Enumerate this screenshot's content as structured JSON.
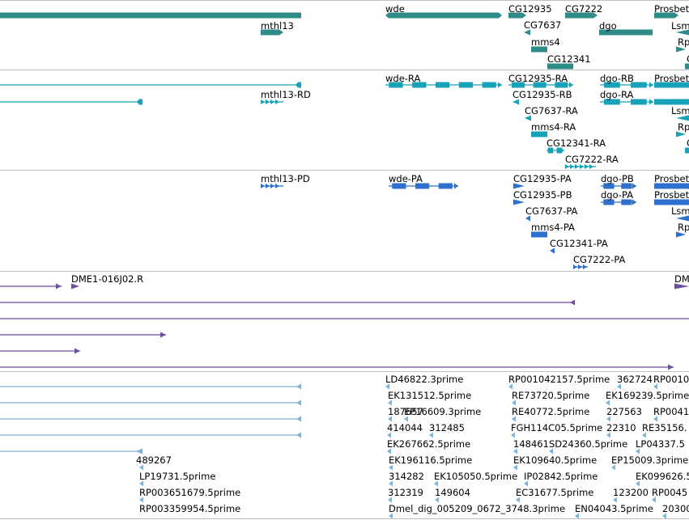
{
  "tracks": [
    {
      "name": "gene",
      "color": "#2e8b87",
      "features": [
        {
          "label": "",
          "shape": "thick"
        },
        {
          "label": "wde",
          "shape": "thick-both"
        },
        {
          "label": "CG12935",
          "shape": "thick-right"
        },
        {
          "label": "CG7222",
          "shape": "thick-right"
        },
        {
          "label": "Prosbet",
          "shape": "thick-right"
        },
        {
          "label": "mthl13",
          "shape": "thick-right"
        },
        {
          "label": "CG7637",
          "shape": "left-arrow"
        },
        {
          "label": "dgo",
          "shape": "thick"
        },
        {
          "label": "Lsm",
          "shape": "left-arrow"
        },
        {
          "label": "mms4",
          "shape": "thick"
        },
        {
          "label": "Rp",
          "shape": "right-arrow"
        },
        {
          "label": "CG12341",
          "shape": "thick"
        },
        {
          "label": "C",
          "shape": "thick"
        }
      ]
    },
    {
      "name": "transcript",
      "color": "#17a2b8",
      "features": [
        {
          "label": "",
          "shape": "line-tail"
        },
        {
          "label": "wde-RA",
          "shape": "exons"
        },
        {
          "label": "CG12935-RA",
          "shape": "exons"
        },
        {
          "label": "dgo-RB",
          "shape": "exons"
        },
        {
          "label": "Prosbet",
          "shape": "thick"
        },
        {
          "label": "",
          "shape": "line-tail"
        },
        {
          "label": "mthl13-RD",
          "shape": "chevrons"
        },
        {
          "label": "CG12935-RB",
          "shape": "left-arrow"
        },
        {
          "label": "dgo-RA",
          "shape": "exons"
        },
        {
          "label": "",
          "shape": "thick"
        },
        {
          "label": "CG7637-RA",
          "shape": "left-arrow"
        },
        {
          "label": "Lsm",
          "shape": "left-arrow"
        },
        {
          "label": "mms4-RA",
          "shape": "thick"
        },
        {
          "label": "Rp",
          "shape": "right-arrow"
        },
        {
          "label": "CG12341-RA",
          "shape": "exons"
        },
        {
          "label": "C",
          "shape": "thick"
        },
        {
          "label": "CG7222-RA",
          "shape": "chevrons"
        }
      ]
    },
    {
      "name": "protein",
      "color": "#2f6fce",
      "features": [
        {
          "label": "mthl13-PD",
          "shape": "chevrons"
        },
        {
          "label": "wde-PA",
          "shape": "exons"
        },
        {
          "label": "CG12935-PA",
          "shape": "right-arrow"
        },
        {
          "label": "dgo-PB",
          "shape": "exons"
        },
        {
          "label": "Prosbet",
          "shape": "thick"
        },
        {
          "label": "CG12935-PB",
          "shape": "right-arrow"
        },
        {
          "label": "dgo-PA",
          "shape": "exons"
        },
        {
          "label": "Prosbet",
          "shape": "thick"
        },
        {
          "label": "CG7637-PA",
          "shape": "left-arrow"
        },
        {
          "label": "Lsm",
          "shape": "left-arrow"
        },
        {
          "label": "mms4-PA",
          "shape": "thick"
        },
        {
          "label": "Rp",
          "shape": "right-arrow"
        },
        {
          "label": "CG12341-PA",
          "shape": "left-arrow"
        },
        {
          "label": "CG7222-PA",
          "shape": "chevrons"
        }
      ]
    },
    {
      "name": "clone",
      "color": "#6f4ea3",
      "features": [
        {
          "label": "",
          "shape": "line-right"
        },
        {
          "label": "DME1-016J02.R",
          "shape": "right-arrow"
        },
        {
          "label": "DM",
          "shape": "right-arrow"
        },
        {
          "label": "",
          "shape": "line-left"
        },
        {
          "label": "",
          "shape": "line"
        },
        {
          "label": "",
          "shape": "line-right"
        },
        {
          "label": "",
          "shape": "line-right"
        },
        {
          "label": "",
          "shape": "line-right"
        }
      ]
    },
    {
      "name": "est",
      "color": "#7bb4dc",
      "features": [
        {
          "label": "",
          "shape": "line-left"
        },
        {
          "label": "",
          "shape": "line-left"
        },
        {
          "label": "",
          "shape": "line-left"
        },
        {
          "label": "",
          "shape": "line-left"
        },
        {
          "label": "",
          "shape": "line-left"
        },
        {
          "label": "489267",
          "shape": "left-arrow"
        },
        {
          "label": "LP19731.5prime",
          "shape": "left-arrow"
        },
        {
          "label": "RP003651679.5prime",
          "shape": "left-arrow"
        },
        {
          "label": "RP003359954.5prime",
          "shape": "left-arrow"
        },
        {
          "label": "LD46822.3prime",
          "shape": "left-arrow"
        },
        {
          "label": "EK131512.5prime",
          "shape": "left-arrow"
        },
        {
          "label": "187657",
          "shape": "left-arrow"
        },
        {
          "label": "EP16609.3prime",
          "shape": "left-arrow"
        },
        {
          "label": "414044",
          "shape": "left-arrow"
        },
        {
          "label": "312485",
          "shape": "left-arrow"
        },
        {
          "label": "EK267662.5prime",
          "shape": "left-arrow"
        },
        {
          "label": "EK196116.5prime",
          "shape": "left-arrow"
        },
        {
          "label": "314282",
          "shape": "left-arrow"
        },
        {
          "label": "EK105050.5prime",
          "shape": "left-arrow"
        },
        {
          "label": "312319",
          "shape": "left-arrow"
        },
        {
          "label": "149604",
          "shape": "left-arrow"
        },
        {
          "label": "Dmel_dig_005209_0672_3748.3prime",
          "shape": "left-arrow"
        },
        {
          "label": "RP001042157.5prime",
          "shape": "left-arrow"
        },
        {
          "label": "RE73720.5prime",
          "shape": "left-arrow"
        },
        {
          "label": "RE40772.5prime",
          "shape": "left-arrow"
        },
        {
          "label": "FGH114C05.5prime",
          "shape": "left-arrow"
        },
        {
          "label": "148461",
          "shape": "left-arrow"
        },
        {
          "label": "SD24360.5prime",
          "shape": "left-arrow"
        },
        {
          "label": "EK109640.5prime",
          "shape": "left-arrow"
        },
        {
          "label": "IP02842.5prime",
          "shape": "left-arrow"
        },
        {
          "label": "EC31677.5prime",
          "shape": "left-arrow"
        },
        {
          "label": "EN04043.5prime",
          "shape": "left-arrow"
        },
        {
          "label": "362724",
          "shape": "left-arrow"
        },
        {
          "label": "RP0010",
          "shape": "left-arrow"
        },
        {
          "label": "EK169239.5prime",
          "shape": "left-arrow"
        },
        {
          "label": "227563",
          "shape": "left-arrow"
        },
        {
          "label": "RP0041",
          "shape": "left-arrow"
        },
        {
          "label": "22310",
          "shape": "left-arrow"
        },
        {
          "label": "RE35156.",
          "shape": "left-arrow"
        },
        {
          "label": "LP04337.5",
          "shape": "left-arrow"
        },
        {
          "label": "EP15009.3prime",
          "shape": "left-arrow"
        },
        {
          "label": "EK099626.5prime",
          "shape": "left-arrow"
        },
        {
          "label": "123200",
          "shape": "left-arrow"
        },
        {
          "label": "RP0045",
          "shape": "left-arrow"
        },
        {
          "label": "20300",
          "shape": "left-arrow"
        }
      ]
    }
  ]
}
